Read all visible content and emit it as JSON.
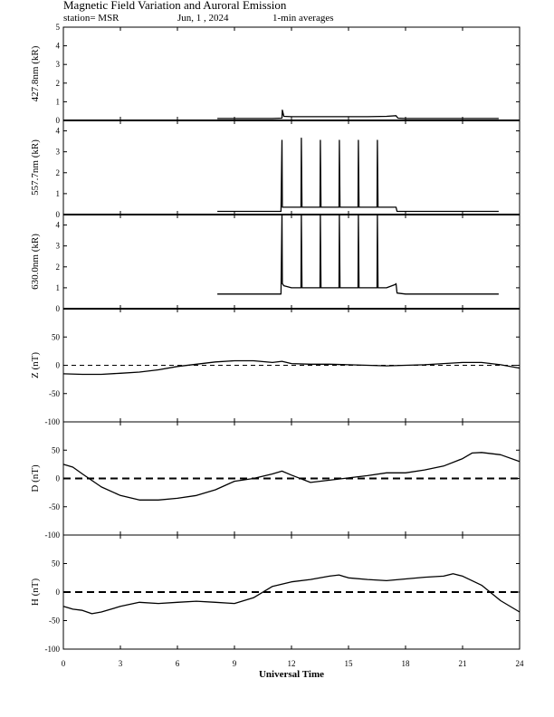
{
  "header": {
    "title": "Magnetic Field Variation and Auroral Emission",
    "station": "station= MSR",
    "date": "Jun, 1  , 2024",
    "averaging": "1-min averages"
  },
  "chart_data": {
    "type": "line",
    "xlabel": "Universal Time",
    "xlim": [
      0,
      24
    ],
    "xticks": [
      0,
      3,
      6,
      9,
      12,
      15,
      18,
      21,
      24
    ],
    "grid": false,
    "panels": [
      {
        "id": "4278",
        "ylabel": "427.8nm (kR)",
        "ylim": [
          0,
          5
        ],
        "yticks": [
          0,
          1,
          2,
          3,
          4,
          5
        ],
        "zero_line": "solid",
        "series": [
          {
            "x": [
              8.1,
              9,
              10,
              11,
              11.5,
              11.52,
              11.6,
              12,
              13,
              14,
              15,
              16,
              17,
              17.5,
              17.6,
              18,
              19,
              20,
              21,
              22,
              22.9
            ],
            "y": [
              0.1,
              0.1,
              0.1,
              0.1,
              0.12,
              0.55,
              0.22,
              0.2,
              0.2,
              0.2,
              0.2,
              0.2,
              0.22,
              0.25,
              0.12,
              0.1,
              0.1,
              0.1,
              0.1,
              0.1,
              0.1
            ]
          }
        ]
      },
      {
        "id": "5577",
        "ylabel": "557.7nm (kR)",
        "ylim": [
          0,
          4.5
        ],
        "yticks": [
          0,
          1,
          2,
          3,
          4
        ],
        "zero_line": "solid",
        "series": [
          {
            "x": [
              8.1,
              9,
              10,
              11,
              11.45,
              11.5,
              11.52,
              11.6,
              12.5,
              12.52,
              12.55,
              13.5,
              13.52,
              13.55,
              14.5,
              14.52,
              14.55,
              15.5,
              15.52,
              15.55,
              16.5,
              16.52,
              16.55,
              17.5,
              17.55,
              18,
              19,
              20,
              21,
              22,
              22.9
            ],
            "y": [
              0.15,
              0.15,
              0.15,
              0.15,
              0.15,
              3.55,
              0.35,
              0.35,
              0.35,
              3.65,
              0.35,
              0.35,
              3.55,
              0.35,
              0.35,
              3.55,
              0.35,
              0.35,
              3.55,
              0.35,
              0.35,
              3.55,
              0.35,
              0.35,
              0.15,
              0.15,
              0.15,
              0.15,
              0.15,
              0.15,
              0.15
            ]
          }
        ]
      },
      {
        "id": "6300",
        "ylabel": "630.0nm (kR)",
        "ylim": [
          0,
          4.5
        ],
        "yticks": [
          0,
          1,
          2,
          3,
          4
        ],
        "zero_line": "solid",
        "series": [
          {
            "x": [
              8.1,
              9,
              10,
              11,
              11.45,
              11.5,
              11.52,
              11.6,
              12,
              12.5,
              12.52,
              12.55,
              13.5,
              13.52,
              13.55,
              14.5,
              14.52,
              14.55,
              15.5,
              15.52,
              15.55,
              16.5,
              16.52,
              16.55,
              17,
              17.45,
              17.5,
              17.55,
              18,
              19,
              20,
              21,
              22,
              22.9
            ],
            "y": [
              0.7,
              0.7,
              0.7,
              0.7,
              0.7,
              4.5,
              1.2,
              1.1,
              1.0,
              1.0,
              4.5,
              1.0,
              1.0,
              4.5,
              1.0,
              1.0,
              4.5,
              1.0,
              1.0,
              4.5,
              1.0,
              1.0,
              4.5,
              1.0,
              1.0,
              1.15,
              1.2,
              0.75,
              0.7,
              0.7,
              0.7,
              0.7,
              0.7,
              0.7
            ]
          }
        ]
      },
      {
        "id": "Z",
        "ylabel": "Z (nT)",
        "ylim": [
          -100,
          100
        ],
        "yticks": [
          -100,
          -50,
          0,
          50
        ],
        "zero_line": "dashed-thin",
        "series": [
          {
            "x": [
              0,
              1,
              2,
              3,
              4,
              5,
              6,
              7,
              8,
              9,
              10,
              11,
              11.5,
              12,
              13,
              14,
              15,
              16,
              17,
              18,
              19,
              20,
              21,
              22,
              23,
              24
            ],
            "y": [
              -15,
              -16,
              -16,
              -14,
              -12,
              -8,
              -2,
              2,
              6,
              8,
              8,
              5,
              7,
              3,
              2,
              2,
              1,
              0,
              -1,
              0,
              1,
              3,
              5,
              5,
              1,
              -5
            ]
          }
        ]
      },
      {
        "id": "D",
        "ylabel": "D (nT)",
        "ylim": [
          -100,
          100
        ],
        "yticks": [
          -100,
          -50,
          0,
          50
        ],
        "zero_line": "dashed-thick",
        "series": [
          {
            "x": [
              0,
              0.5,
              1,
              2,
              3,
              4,
              5,
              6,
              7,
              8,
              9,
              10,
              11,
              11.5,
              12,
              13,
              14,
              15,
              16,
              17,
              18,
              19,
              20,
              21,
              21.5,
              22,
              23,
              24
            ],
            "y": [
              25,
              20,
              8,
              -15,
              -30,
              -38,
              -38,
              -35,
              -30,
              -20,
              -5,
              0,
              8,
              13,
              6,
              -7,
              -3,
              1,
              5,
              10,
              10,
              15,
              22,
              35,
              45,
              46,
              42,
              30
            ]
          }
        ]
      },
      {
        "id": "H",
        "ylabel": "H (nT)",
        "ylim": [
          -100,
          100
        ],
        "yticks": [
          -100,
          -50,
          0,
          50
        ],
        "zero_line": "dashed-thick",
        "series": [
          {
            "x": [
              0,
              0.5,
              1,
              1.5,
              2,
              3,
              4,
              5,
              6,
              7,
              8,
              9,
              10,
              11,
              12,
              13,
              14,
              14.5,
              15,
              16,
              17,
              18,
              19,
              20,
              20.5,
              21,
              22,
              23,
              24
            ],
            "y": [
              -25,
              -30,
              -32,
              -38,
              -35,
              -25,
              -18,
              -20,
              -18,
              -16,
              -18,
              -20,
              -10,
              10,
              18,
              22,
              28,
              30,
              25,
              22,
              20,
              23,
              26,
              28,
              32,
              28,
              12,
              -15,
              -35
            ]
          }
        ]
      }
    ]
  }
}
